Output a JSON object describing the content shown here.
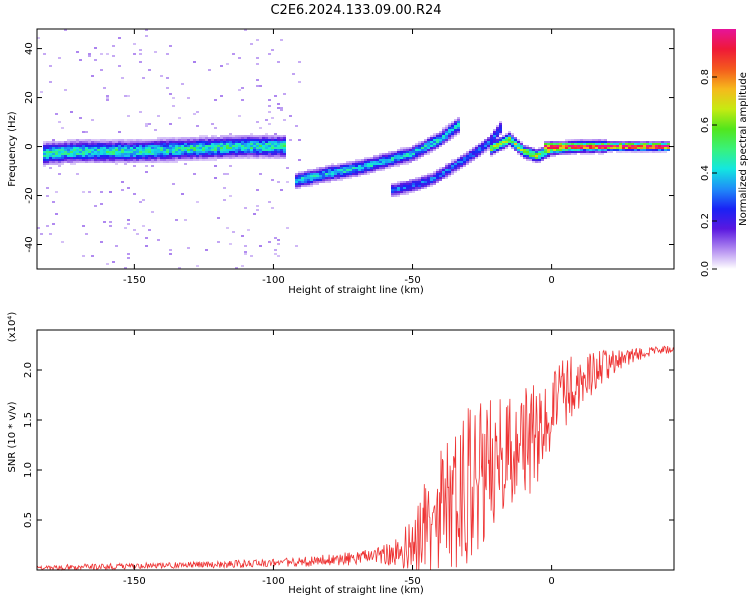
{
  "title": "C2E6.2024.133.09.00.R24",
  "colorbar": {
    "label": "Normalized spectral amplitude",
    "ticks": [
      "0.0",
      "0.2",
      "0.4",
      "0.6",
      "0.8"
    ],
    "tick_values": [
      0.0,
      0.2,
      0.4,
      0.6,
      0.8
    ],
    "range": [
      0,
      1
    ],
    "colors": [
      "#ffffff",
      "#b089f0",
      "#5a18e0",
      "#1a22f5",
      "#1f8cf8",
      "#13e7e0",
      "#39f27a",
      "#52e61c",
      "#c7ea12",
      "#f6b91c",
      "#f45a1d",
      "#ef1838",
      "#e6149a"
    ]
  },
  "chart_data": [
    {
      "type": "heatmap",
      "title": "",
      "xlabel": "Height of straight line (km)",
      "ylabel": "Frequency (Hz)",
      "xlim": [
        -185,
        44
      ],
      "ylim": [
        -50,
        48
      ],
      "xticks": [
        -150,
        -100,
        -50,
        0
      ],
      "yticks": [
        -40,
        -20,
        0,
        20,
        40
      ],
      "xtick_labels": [
        "-150",
        "-100",
        "-50",
        "0"
      ],
      "ytick_labels": [
        "-40",
        "-20",
        "0",
        "20",
        "40"
      ],
      "ridges": [
        {
          "points": [
            [
              -183,
              -3
            ],
            [
              -170,
              -2
            ],
            [
              -150,
              -2
            ],
            [
              -130,
              -1
            ],
            [
              -110,
              0
            ],
            [
              -95,
              0
            ]
          ],
          "amplitude": 0.45,
          "spread": 2.2
        },
        {
          "points": [
            [
              -92,
              -14
            ],
            [
              -80,
              -11
            ],
            [
              -70,
              -9
            ],
            [
              -60,
              -6
            ],
            [
              -50,
              -3
            ],
            [
              -40,
              3
            ],
            [
              -33,
              9
            ]
          ],
          "amplitude": 0.4,
          "spread": 1.6
        },
        {
          "points": [
            [
              -58,
              -18
            ],
            [
              -50,
              -16
            ],
            [
              -42,
              -13
            ],
            [
              -35,
              -8
            ],
            [
              -28,
              -3
            ],
            [
              -22,
              2
            ],
            [
              -18,
              8
            ]
          ],
          "amplitude": 0.3,
          "spread": 1.4
        },
        {
          "points": [
            [
              -22,
              -1
            ],
            [
              -15,
              3
            ],
            [
              -10,
              -2
            ],
            [
              -5,
              -4
            ],
            [
              0,
              -1
            ],
            [
              10,
              0
            ],
            [
              20,
              0
            ]
          ],
          "amplitude": 0.6,
          "spread": 1.3
        },
        {
          "points": [
            [
              -3,
              0
            ],
            [
              10,
              0
            ],
            [
              25,
              0
            ],
            [
              43,
              0
            ]
          ],
          "amplitude": 0.97,
          "spread": 0.9
        }
      ]
    },
    {
      "type": "line",
      "title": "",
      "xlabel": "Height of straight line (km)",
      "ylabel": "SNR (10 * v/v)",
      "scale_label": "(x10⁴)",
      "xlim": [
        -185,
        44
      ],
      "ylim": [
        0,
        2.4
      ],
      "xticks": [
        -150,
        -100,
        -50,
        0
      ],
      "yticks": [
        0.5,
        1.0,
        1.5,
        2.0
      ],
      "xtick_labels": [
        "-150",
        "-100",
        "-50",
        "0"
      ],
      "ytick_labels": [
        "0.5",
        "1.0",
        "1.5",
        "2.0"
      ],
      "series": [
        {
          "color": "#ee3333",
          "x": [
            -185,
            -170,
            -150,
            -130,
            -110,
            -100,
            -90,
            -80,
            -70,
            -60,
            -55,
            -50,
            -47,
            -44,
            -40,
            -36,
            -32,
            -28,
            -24,
            -20,
            -16,
            -12,
            -8,
            -4,
            0,
            4,
            8,
            12,
            16,
            20,
            25,
            30,
            35,
            40,
            44
          ],
          "values": [
            0.02,
            0.03,
            0.04,
            0.05,
            0.06,
            0.07,
            0.08,
            0.1,
            0.12,
            0.15,
            0.18,
            0.25,
            0.35,
            0.45,
            0.55,
            0.7,
            0.8,
            0.9,
            1.0,
            1.05,
            1.1,
            1.2,
            1.3,
            1.4,
            1.6,
            1.75,
            1.85,
            1.9,
            2.0,
            2.05,
            2.1,
            2.15,
            2.18,
            2.2,
            2.2
          ],
          "noise": [
            0.02,
            0.03,
            0.03,
            0.03,
            0.04,
            0.04,
            0.05,
            0.06,
            0.07,
            0.1,
            0.15,
            0.3,
            0.45,
            0.55,
            0.65,
            0.75,
            0.8,
            0.8,
            0.75,
            0.7,
            0.65,
            0.6,
            0.55,
            0.5,
            0.4,
            0.35,
            0.3,
            0.25,
            0.2,
            0.15,
            0.1,
            0.07,
            0.05,
            0.04,
            0.04
          ]
        }
      ]
    }
  ]
}
